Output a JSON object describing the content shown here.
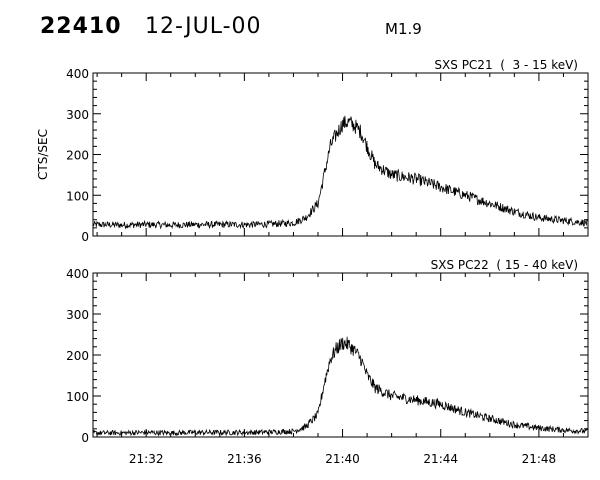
{
  "header": {
    "event_id": "22410",
    "date": "12-JUL-00",
    "flare_class": "M1.9"
  },
  "chart_data": [
    {
      "type": "line",
      "title": "SXS PC21  (  3 - 15 keV)",
      "xlabel": "",
      "ylabel": "CTS/SEC",
      "xlim": [
        "21:29:50",
        "21:50:00"
      ],
      "ylim": [
        0,
        400
      ],
      "yticks": [
        "0",
        "100",
        "200",
        "300",
        "400"
      ],
      "xticks": [],
      "grid": false,
      "series": [
        {
          "x": [
            "21:30",
            "21:31",
            "21:32",
            "21:33",
            "21:34",
            "21:35",
            "21:36",
            "21:37",
            "21:38",
            "21:38:30",
            "21:39",
            "21:39:15",
            "21:39:30",
            "21:39:45",
            "21:40",
            "21:40:15",
            "21:40:30",
            "21:40:45",
            "21:41",
            "21:41:20",
            "21:42",
            "21:43",
            "21:44",
            "21:45",
            "21:46",
            "21:47",
            "21:48",
            "21:49",
            "21:50"
          ],
          "values": [
            28,
            27,
            28,
            27,
            28,
            28,
            28,
            29,
            32,
            45,
            80,
            150,
            220,
            250,
            275,
            280,
            270,
            255,
            220,
            175,
            150,
            140,
            120,
            100,
            80,
            60,
            45,
            38,
            32
          ]
        }
      ]
    },
    {
      "type": "line",
      "title": "SXS PC22  ( 15 - 40 keV)",
      "xlabel": "",
      "ylabel": "",
      "xlim": [
        "21:29:50",
        "21:50:00"
      ],
      "ylim": [
        0,
        400
      ],
      "yticks": [
        "0",
        "100",
        "200",
        "300",
        "400"
      ],
      "xticks": [
        "21:32",
        "21:36",
        "21:40",
        "21:44",
        "21:48"
      ],
      "grid": false,
      "series": [
        {
          "x": [
            "21:30",
            "21:31",
            "21:32",
            "21:33",
            "21:34",
            "21:35",
            "21:36",
            "21:37",
            "21:38",
            "21:38:30",
            "21:39",
            "21:39:15",
            "21:39:30",
            "21:39:45",
            "21:40",
            "21:40:15",
            "21:40:30",
            "21:40:45",
            "21:41",
            "21:41:20",
            "21:42",
            "21:43",
            "21:44",
            "21:45",
            "21:46",
            "21:47",
            "21:48",
            "21:49",
            "21:50"
          ],
          "values": [
            10,
            10,
            11,
            10,
            11,
            11,
            11,
            12,
            14,
            25,
            55,
            130,
            190,
            215,
            230,
            225,
            210,
            190,
            150,
            120,
            100,
            90,
            80,
            60,
            45,
            30,
            22,
            17,
            14
          ]
        }
      ]
    }
  ]
}
